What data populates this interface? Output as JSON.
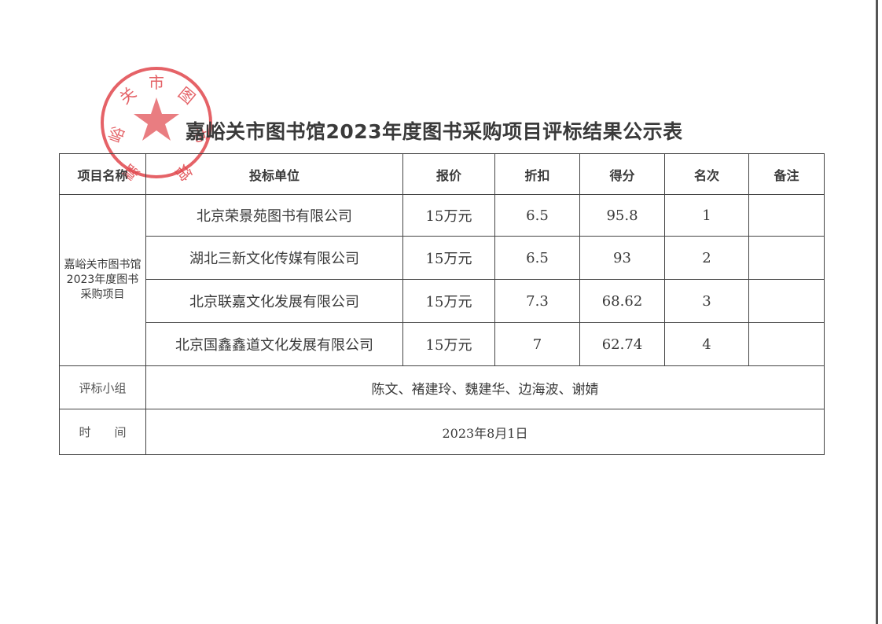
{
  "stamp": {
    "text": "嘉峪关市图书馆",
    "color": "#e0464c",
    "icon": "star-icon"
  },
  "title": "嘉峪关市图书馆2023年度图书采购项目评标结果公示表",
  "table": {
    "headers": [
      "项目名称",
      "投标单位",
      "报价",
      "折扣",
      "得分",
      "名次",
      "备注"
    ],
    "project_name": "嘉峪关市图书馆2023年度图书采购项目",
    "rows": [
      {
        "bidder": "北京荣景苑图书有限公司",
        "price": "15万元",
        "discount": "6.5",
        "score": "95.8",
        "rank": "1",
        "note": ""
      },
      {
        "bidder": "湖北三新文化传媒有限公司",
        "price": "15万元",
        "discount": "6.5",
        "score": "93",
        "rank": "2",
        "note": ""
      },
      {
        "bidder": "北京联嘉文化发展有限公司",
        "price": "15万元",
        "discount": "7.3",
        "score": "68.62",
        "rank": "3",
        "note": ""
      },
      {
        "bidder": "北京国鑫鑫道文化发展有限公司",
        "price": "15万元",
        "discount": "7",
        "score": "62.74",
        "rank": "4",
        "note": ""
      }
    ],
    "committee_label": "评标小组",
    "committee": "陈文、褚建玲、魏建华、边海波、谢婧",
    "time_label": "时　　间",
    "time": "2023年8月1日"
  }
}
